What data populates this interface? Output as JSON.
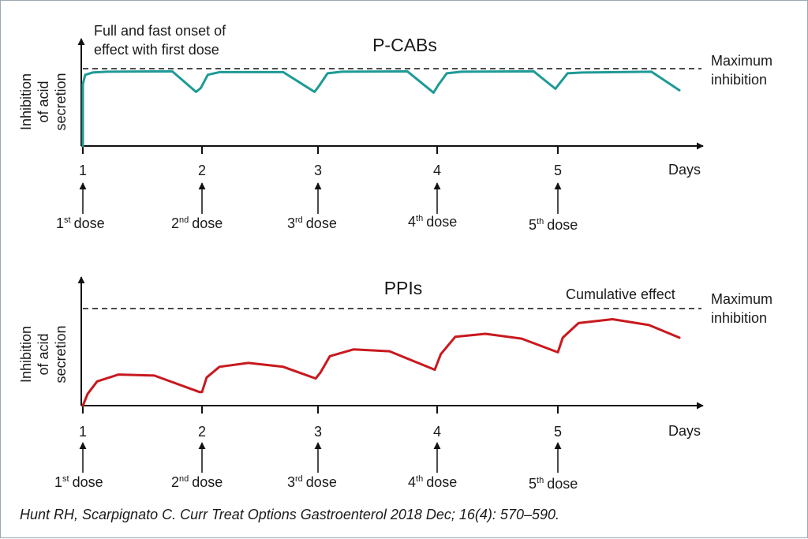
{
  "chart_data": [
    {
      "type": "line",
      "title": "P-CABs",
      "ylabel": [
        "Inhibition",
        "of acid",
        "secretion"
      ],
      "xlabel": "Days",
      "x_ticks": [
        "1",
        "2",
        "3",
        "4",
        "5"
      ],
      "xlim": [
        1,
        6
      ],
      "ylim": [
        0,
        100
      ],
      "reference_line": {
        "y": 100,
        "label": [
          "Maximum",
          "inhibition"
        ]
      },
      "annotation": [
        "Full and fast onset of",
        "effect with first dose"
      ],
      "dose_labels": [
        {
          "num": "1",
          "sup": "st",
          "text": "dose"
        },
        {
          "num": "2",
          "sup": "nd",
          "text": "dose"
        },
        {
          "num": "3",
          "sup": "rd",
          "text": "dose"
        },
        {
          "num": "4",
          "sup": "th",
          "text": "dose"
        },
        {
          "num": "5",
          "sup": "th",
          "text": "dose"
        }
      ],
      "series": [
        {
          "color": "#1e9a96",
          "points": [
            [
              1.0,
              0
            ],
            [
              1.0,
              80
            ],
            [
              1.02,
              92
            ],
            [
              1.08,
              95
            ],
            [
              1.2,
              96
            ],
            [
              1.75,
              96.5
            ],
            [
              1.95,
              70
            ],
            [
              1.99,
              75
            ],
            [
              2.05,
              92
            ],
            [
              2.15,
              95.5
            ],
            [
              2.7,
              95.5
            ],
            [
              2.97,
              70
            ],
            [
              3.01,
              78
            ],
            [
              3.08,
              94
            ],
            [
              3.2,
              96
            ],
            [
              3.75,
              96.5
            ],
            [
              3.97,
              69
            ],
            [
              4.01,
              79
            ],
            [
              4.08,
              94
            ],
            [
              4.2,
              96
            ],
            [
              4.8,
              96.5
            ],
            [
              4.98,
              74
            ],
            [
              5.01,
              80
            ],
            [
              5.08,
              94
            ],
            [
              5.2,
              95
            ],
            [
              5.77,
              96
            ],
            [
              6.02,
              72
            ]
          ]
        }
      ]
    },
    {
      "type": "line",
      "title": "PPIs",
      "ylabel": [
        "Inhibition",
        "of acid",
        "secretion"
      ],
      "xlabel": "Days",
      "x_ticks": [
        "1",
        "2",
        "3",
        "4",
        "5"
      ],
      "xlim": [
        1,
        6
      ],
      "ylim": [
        0,
        100
      ],
      "reference_line": {
        "y": 100,
        "label": [
          "Maximum",
          "inhibition"
        ]
      },
      "annotation": [
        "Cumulative effect"
      ],
      "dose_labels": [
        {
          "num": "1",
          "sup": "st",
          "text": "dose"
        },
        {
          "num": "2",
          "sup": "nd",
          "text": "dose"
        },
        {
          "num": "3",
          "sup": "rd",
          "text": "dose"
        },
        {
          "num": "4",
          "sup": "th",
          "text": "dose"
        },
        {
          "num": "5",
          "sup": "th",
          "text": "dose"
        }
      ],
      "series": [
        {
          "color": "#c8191e",
          "points": [
            [
              1.0,
              0
            ],
            [
              1.04,
              12
            ],
            [
              1.12,
              25
            ],
            [
              1.3,
              32
            ],
            [
              1.6,
              31
            ],
            [
              1.98,
              14
            ],
            [
              2.0,
              14
            ],
            [
              2.04,
              29
            ],
            [
              2.15,
              40
            ],
            [
              2.4,
              44
            ],
            [
              2.7,
              40
            ],
            [
              2.98,
              28
            ],
            [
              3.02,
              34
            ],
            [
              3.1,
              51
            ],
            [
              3.3,
              58
            ],
            [
              3.6,
              56
            ],
            [
              3.98,
              37
            ],
            [
              4.03,
              53
            ],
            [
              4.15,
              71
            ],
            [
              4.4,
              74
            ],
            [
              4.7,
              69
            ],
            [
              5.0,
              55
            ],
            [
              5.04,
              70
            ],
            [
              5.17,
              85
            ],
            [
              5.45,
              89
            ],
            [
              5.75,
              83
            ],
            [
              6.02,
              70
            ]
          ]
        }
      ]
    }
  ],
  "citation": "Hunt RH, Scarpignato C. Curr Treat Options Gastroenterol 2018 Dec; 16(4): 570–590."
}
